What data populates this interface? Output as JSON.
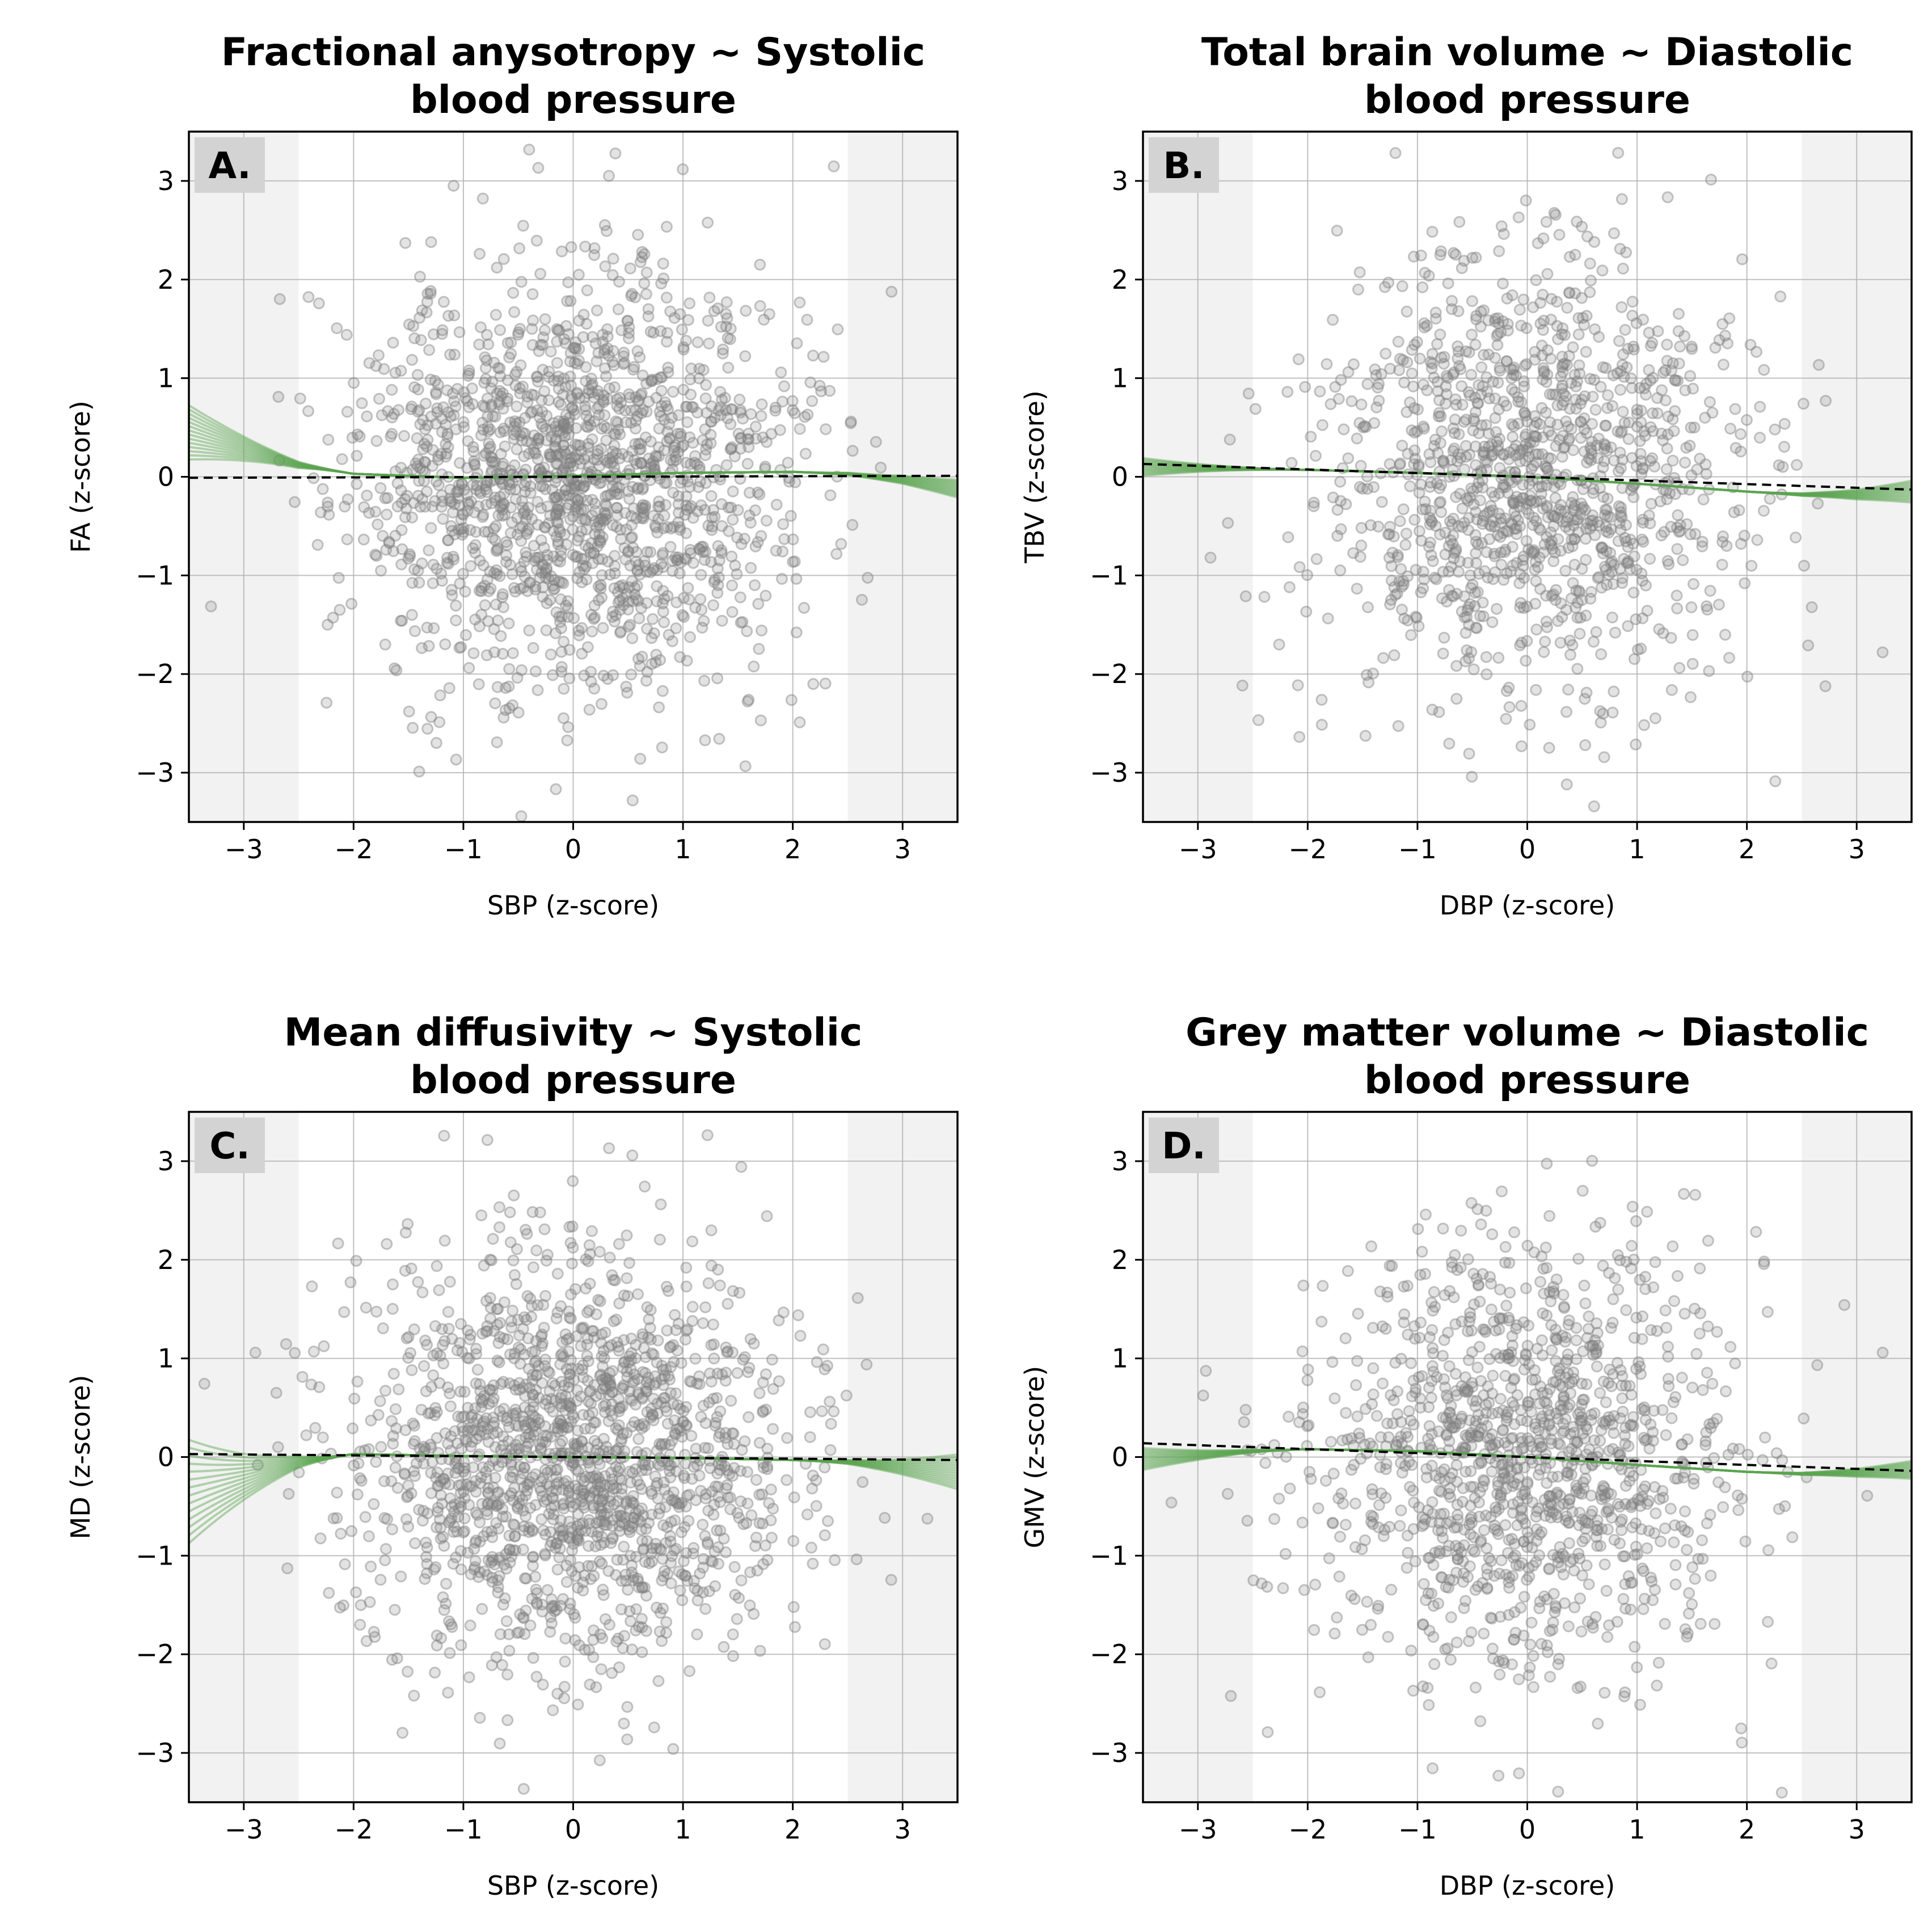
{
  "figure": {
    "background": "#ffffff",
    "point_color": "#808080",
    "curve_color": "#5aa350",
    "reference_line_color": "#000000",
    "shade_color": "#f2f2f2",
    "grid_color": "#b0b0b0"
  },
  "chart_data": [
    {
      "type": "scatter",
      "panel_label": "A.",
      "title_lines": [
        "Fractional anysotropy ~ Systolic",
        "blood pressure"
      ],
      "xlabel": "SBP (z-score)",
      "ylabel": "FA (z-score)",
      "xlim": [
        -3.5,
        3.5
      ],
      "ylim": [
        -3.5,
        3.5
      ],
      "xticks": [
        -3,
        -2,
        -1,
        0,
        1,
        2,
        3
      ],
      "yticks": [
        -3,
        -2,
        -1,
        0,
        1,
        2,
        3
      ],
      "shaded_x_ranges": [
        [
          -3.5,
          -2.5
        ],
        [
          2.5,
          3.5
        ]
      ],
      "grid": true,
      "points": {
        "n": 1650,
        "seed": 11,
        "x_sd": 1.0,
        "y_sd": 1.05,
        "clip": 3.45
      },
      "reference_line": {
        "style": "dashed",
        "points": [
          [
            -3.5,
            -0.01
          ],
          [
            3.5,
            0.01
          ]
        ]
      },
      "bootstrap_curves": {
        "count": 14,
        "points_mean": [
          [
            -3.5,
            0.45
          ],
          [
            -2.5,
            0.12
          ],
          [
            -2,
            0.03
          ],
          [
            -1,
            -0.01
          ],
          [
            0,
            0.01
          ],
          [
            1,
            0.04
          ],
          [
            2,
            0.05
          ],
          [
            2.5,
            0.03
          ],
          [
            3,
            -0.03
          ],
          [
            3.5,
            -0.12
          ]
        ],
        "left_spread": 0.55,
        "right_spread": 0.18
      }
    },
    {
      "type": "scatter",
      "panel_label": "B.",
      "title_lines": [
        "Total brain volume ~ Diastolic",
        "blood pressure"
      ],
      "xlabel": "DBP (z-score)",
      "ylabel": "TBV (z-score)",
      "xlim": [
        -3.5,
        3.5
      ],
      "ylim": [
        -3.5,
        3.5
      ],
      "xticks": [
        -3,
        -2,
        -1,
        0,
        1,
        2,
        3
      ],
      "yticks": [
        -3,
        -2,
        -1,
        0,
        1,
        2,
        3
      ],
      "shaded_x_ranges": [
        [
          -3.5,
          -2.5
        ],
        [
          2.5,
          3.5
        ]
      ],
      "grid": true,
      "points": {
        "n": 1250,
        "seed": 23,
        "x_sd": 0.95,
        "y_sd": 1.1,
        "clip": 3.45
      },
      "reference_line": {
        "style": "dashed",
        "points": [
          [
            -3.5,
            0.13
          ],
          [
            3.5,
            -0.13
          ]
        ]
      },
      "bootstrap_curves": {
        "count": 14,
        "points_mean": [
          [
            -3.5,
            0.1
          ],
          [
            -2.5,
            0.08
          ],
          [
            -2,
            0.07
          ],
          [
            -1,
            0.04
          ],
          [
            0,
            0.0
          ],
          [
            1,
            -0.07
          ],
          [
            2,
            -0.15
          ],
          [
            2.5,
            -0.18
          ],
          [
            3,
            -0.18
          ],
          [
            3.5,
            -0.15
          ]
        ],
        "left_spread": 0.18,
        "right_spread": 0.22
      }
    },
    {
      "type": "scatter",
      "panel_label": "C.",
      "title_lines": [
        "Mean diffusivity ~ Systolic",
        "blood pressure"
      ],
      "xlabel": "SBP (z-score)",
      "ylabel": "MD (z-score)",
      "xlim": [
        -3.5,
        3.5
      ],
      "ylim": [
        -3.5,
        3.5
      ],
      "xticks": [
        -3,
        -2,
        -1,
        0,
        1,
        2,
        3
      ],
      "yticks": [
        -3,
        -2,
        -1,
        0,
        1,
        2,
        3
      ],
      "shaded_x_ranges": [
        [
          -3.5,
          -2.5
        ],
        [
          2.5,
          3.5
        ]
      ],
      "grid": true,
      "points": {
        "n": 1650,
        "seed": 37,
        "x_sd": 1.0,
        "y_sd": 1.05,
        "clip": 3.45
      },
      "reference_line": {
        "style": "dashed",
        "points": [
          [
            -3.5,
            0.03
          ],
          [
            3.5,
            -0.03
          ]
        ]
      },
      "bootstrap_curves": {
        "count": 14,
        "points_mean": [
          [
            -3.5,
            -0.35
          ],
          [
            -2.5,
            -0.05
          ],
          [
            -2,
            0.03
          ],
          [
            -1,
            0.01
          ],
          [
            0,
            0.0
          ],
          [
            1,
            -0.01
          ],
          [
            2,
            -0.03
          ],
          [
            2.5,
            -0.05
          ],
          [
            3,
            -0.1
          ],
          [
            3.5,
            -0.15
          ]
        ],
        "left_spread": 1.05,
        "right_spread": 0.35
      }
    },
    {
      "type": "scatter",
      "panel_label": "D.",
      "title_lines": [
        "Grey matter volume ~ Diastolic",
        "blood pressure"
      ],
      "xlabel": "DBP (z-score)",
      "ylabel": "GMV (z-score)",
      "xlim": [
        -3.5,
        3.5
      ],
      "ylim": [
        -3.5,
        3.5
      ],
      "xticks": [
        -3,
        -2,
        -1,
        0,
        1,
        2,
        3
      ],
      "yticks": [
        -3,
        -2,
        -1,
        0,
        1,
        2,
        3
      ],
      "shaded_x_ranges": [
        [
          -3.5,
          -2.5
        ],
        [
          2.5,
          3.5
        ]
      ],
      "grid": true,
      "points": {
        "n": 1250,
        "seed": 53,
        "x_sd": 0.95,
        "y_sd": 1.1,
        "clip": 3.45
      },
      "reference_line": {
        "style": "dashed",
        "points": [
          [
            -3.5,
            0.14
          ],
          [
            3.5,
            -0.14
          ]
        ]
      },
      "bootstrap_curves": {
        "count": 14,
        "points_mean": [
          [
            -3.5,
            -0.02
          ],
          [
            -2.5,
            0.06
          ],
          [
            -2,
            0.08
          ],
          [
            -1,
            0.06
          ],
          [
            0,
            0.0
          ],
          [
            1,
            -0.08
          ],
          [
            2,
            -0.15
          ],
          [
            2.5,
            -0.17
          ],
          [
            3,
            -0.16
          ],
          [
            3.5,
            -0.13
          ]
        ],
        "left_spread": 0.22,
        "right_spread": 0.18
      }
    }
  ]
}
